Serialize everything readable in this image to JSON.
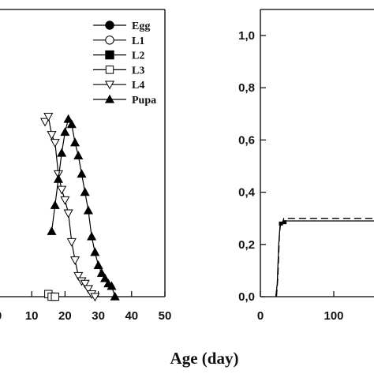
{
  "chart_data": [
    {
      "type": "line",
      "title": "",
      "xlabel": "Age (day)",
      "ylabel": "",
      "xlim": [
        0,
        50
      ],
      "x_ticks": [
        "0",
        "10",
        "20",
        "30",
        "40",
        "50"
      ],
      "legend_position": "top-right",
      "grid": false,
      "series": [
        {
          "name": "Egg",
          "marker": "circle-filled",
          "x": [],
          "y": []
        },
        {
          "name": "L1",
          "marker": "circle-open",
          "x": [],
          "y": []
        },
        {
          "name": "L2",
          "marker": "square-filled",
          "x": [],
          "y": []
        },
        {
          "name": "L3",
          "marker": "square-open",
          "x": [
            15,
            16,
            17
          ],
          "y": [
            0.01,
            0.0,
            0.0
          ]
        },
        {
          "name": "L4",
          "marker": "triangle-down-open",
          "x": [
            14,
            15,
            16,
            17,
            18,
            19,
            20,
            21,
            22,
            23,
            24,
            25,
            26,
            27,
            28,
            29
          ],
          "y": [
            0.67,
            0.69,
            0.62,
            0.59,
            0.47,
            0.41,
            0.37,
            0.32,
            0.21,
            0.14,
            0.08,
            0.06,
            0.05,
            0.03,
            0.01,
            0.0
          ]
        },
        {
          "name": "Pupa",
          "marker": "triangle-up-filled",
          "x": [
            16,
            17,
            18,
            19,
            20,
            21,
            22,
            23,
            24,
            25,
            26,
            27,
            28,
            29,
            30,
            31,
            32,
            33,
            34,
            35
          ],
          "y": [
            0.25,
            0.35,
            0.45,
            0.55,
            0.63,
            0.68,
            0.66,
            0.59,
            0.54,
            0.47,
            0.4,
            0.33,
            0.23,
            0.17,
            0.12,
            0.09,
            0.07,
            0.05,
            0.04,
            0.0
          ]
        }
      ]
    },
    {
      "type": "line",
      "title": "",
      "xlabel": "",
      "ylabel": "",
      "xlim": [
        -50,
        200
      ],
      "ylim": [
        0,
        1.1
      ],
      "x_ticks": [
        "0",
        "100"
      ],
      "y_ticks": [
        "0,0",
        "0,2",
        "0,4",
        "0,6",
        "0,8",
        "1,0"
      ],
      "grid": false,
      "series": [
        {
          "style": "solid",
          "x": [
            21,
            23,
            25,
            27,
            29,
            31,
            33,
            200
          ],
          "y": [
            0.0,
            0.05,
            0.2,
            0.28,
            0.28,
            0.29,
            0.29,
            0.29
          ]
        },
        {
          "style": "dashed",
          "x": [
            22,
            24,
            26,
            28,
            30,
            32,
            34,
            200
          ],
          "y": [
            0.0,
            0.08,
            0.24,
            0.29,
            0.28,
            0.3,
            0.3,
            0.3
          ]
        }
      ]
    }
  ]
}
